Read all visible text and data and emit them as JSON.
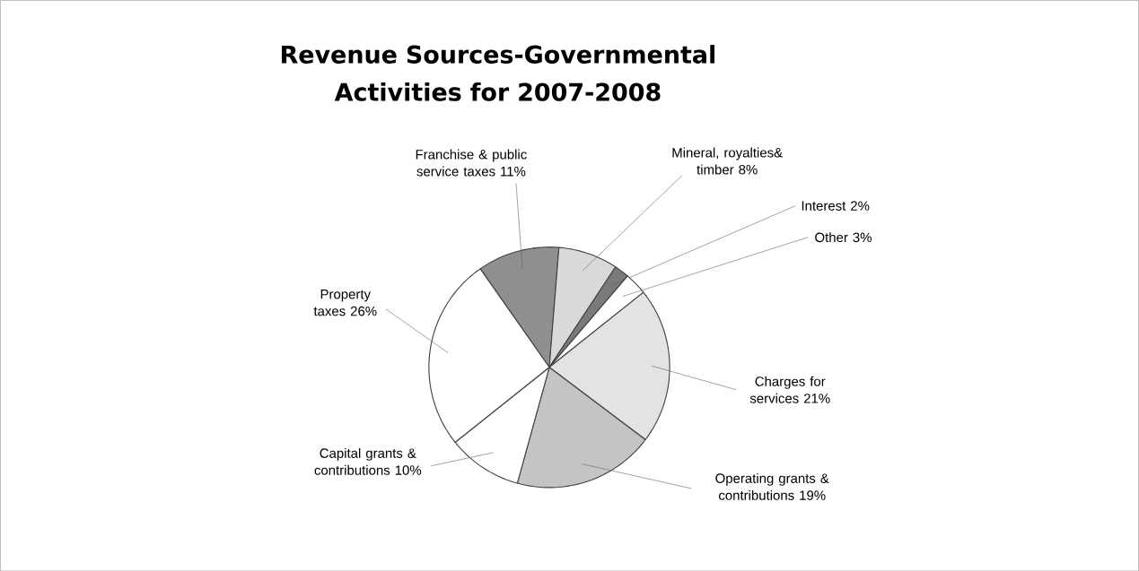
{
  "chart_data": {
    "type": "pie",
    "title": "Revenue Sources-Governmental Activities for 2007-2008",
    "categories": [
      "Franchise & public service taxes",
      "Mineral, royalties& timber",
      "Interest",
      "Other",
      "Charges for services",
      "Operating grants & contributions",
      "Capital grants & contributions",
      "Property taxes"
    ],
    "values": [
      11,
      8,
      2,
      3,
      21,
      19,
      10,
      26
    ],
    "value_labels": [
      "11%",
      "8%",
      "2%",
      "3%",
      "21%",
      "19%",
      "10%",
      "26%"
    ],
    "colors": [
      "#8f8f8f",
      "#d9d9d9",
      "#7a7a7a",
      "#ffffff",
      "#e3e3e3",
      "#c4c4c4",
      "#ffffff",
      "#ffffff"
    ]
  }
}
